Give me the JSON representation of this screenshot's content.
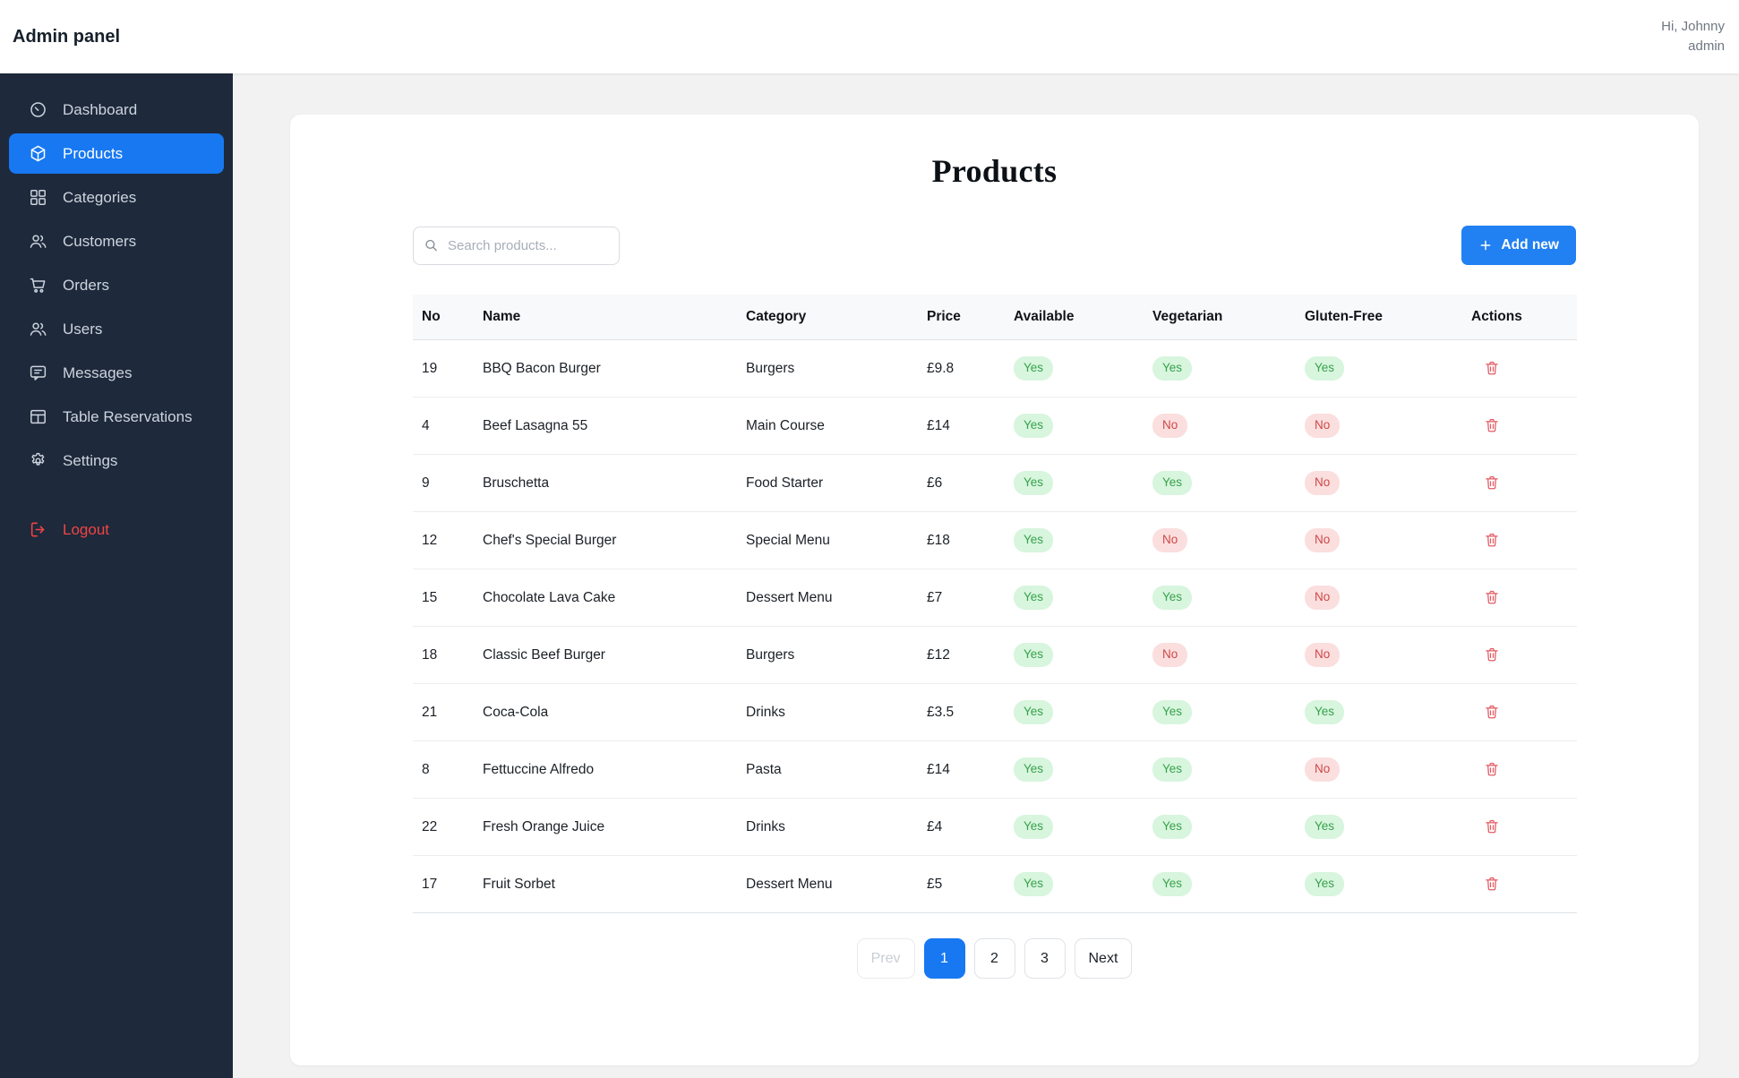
{
  "header": {
    "app_title": "Admin panel",
    "greeting": "Hi, Johnny",
    "role": "admin"
  },
  "sidebar": {
    "items": [
      {
        "label": "Dashboard",
        "icon": "gauge",
        "active": false
      },
      {
        "label": "Products",
        "icon": "cube",
        "active": true
      },
      {
        "label": "Categories",
        "icon": "grid",
        "active": false
      },
      {
        "label": "Customers",
        "icon": "people",
        "active": false
      },
      {
        "label": "Orders",
        "icon": "cart",
        "active": false
      },
      {
        "label": "Users",
        "icon": "people",
        "active": false
      },
      {
        "label": "Messages",
        "icon": "chat",
        "active": false
      },
      {
        "label": "Table Reservations",
        "icon": "table",
        "active": false
      },
      {
        "label": "Settings",
        "icon": "gear",
        "active": false
      }
    ],
    "logout_label": "Logout",
    "logout_icon": "logout"
  },
  "main": {
    "title": "Products",
    "search_placeholder": "Search products...",
    "add_button_label": "Add new",
    "table": {
      "columns": [
        "No",
        "Name",
        "Category",
        "Price",
        "Available",
        "Vegetarian",
        "Gluten-Free",
        "Actions"
      ],
      "rows": [
        {
          "no": "19",
          "name": "BBQ Bacon Burger",
          "category": "Burgers",
          "price": "£9.8",
          "available": "Yes",
          "vegetarian": "Yes",
          "gluten_free": "Yes"
        },
        {
          "no": "4",
          "name": "Beef Lasagna 55",
          "category": "Main Course",
          "price": "£14",
          "available": "Yes",
          "vegetarian": "No",
          "gluten_free": "No"
        },
        {
          "no": "9",
          "name": "Bruschetta",
          "category": "Food Starter",
          "price": "£6",
          "available": "Yes",
          "vegetarian": "Yes",
          "gluten_free": "No"
        },
        {
          "no": "12",
          "name": "Chef's Special Burger",
          "category": "Special Menu",
          "price": "£18",
          "available": "Yes",
          "vegetarian": "No",
          "gluten_free": "No"
        },
        {
          "no": "15",
          "name": "Chocolate Lava Cake",
          "category": "Dessert Menu",
          "price": "£7",
          "available": "Yes",
          "vegetarian": "Yes",
          "gluten_free": "No"
        },
        {
          "no": "18",
          "name": "Classic Beef Burger",
          "category": "Burgers",
          "price": "£12",
          "available": "Yes",
          "vegetarian": "No",
          "gluten_free": "No"
        },
        {
          "no": "21",
          "name": "Coca-Cola",
          "category": "Drinks",
          "price": "£3.5",
          "available": "Yes",
          "vegetarian": "Yes",
          "gluten_free": "Yes"
        },
        {
          "no": "8",
          "name": "Fettuccine Alfredo",
          "category": "Pasta",
          "price": "£14",
          "available": "Yes",
          "vegetarian": "Yes",
          "gluten_free": "No"
        },
        {
          "no": "22",
          "name": "Fresh Orange Juice",
          "category": "Drinks",
          "price": "£4",
          "available": "Yes",
          "vegetarian": "Yes",
          "gluten_free": "Yes"
        },
        {
          "no": "17",
          "name": "Fruit Sorbet",
          "category": "Dessert Menu",
          "price": "£5",
          "available": "Yes",
          "vegetarian": "Yes",
          "gluten_free": "Yes"
        }
      ]
    },
    "pagination": {
      "prev_label": "Prev",
      "pages": [
        "1",
        "2",
        "3"
      ],
      "active_page": "1",
      "next_label": "Next"
    }
  },
  "colors": {
    "accent_blue": "#1778f2",
    "sidebar_bg": "#1e293b",
    "sidebar_text": "#cdd4de",
    "logout_red": "#ef4444",
    "badge_yes_bg": "#d8f5de",
    "badge_yes_text": "#37a24c",
    "badge_no_bg": "#fbdede",
    "badge_no_text": "#cf4848",
    "trash_red": "#e25c64",
    "page_bg": "#f2f2f3",
    "table_header_bg": "#f8f9fa"
  }
}
